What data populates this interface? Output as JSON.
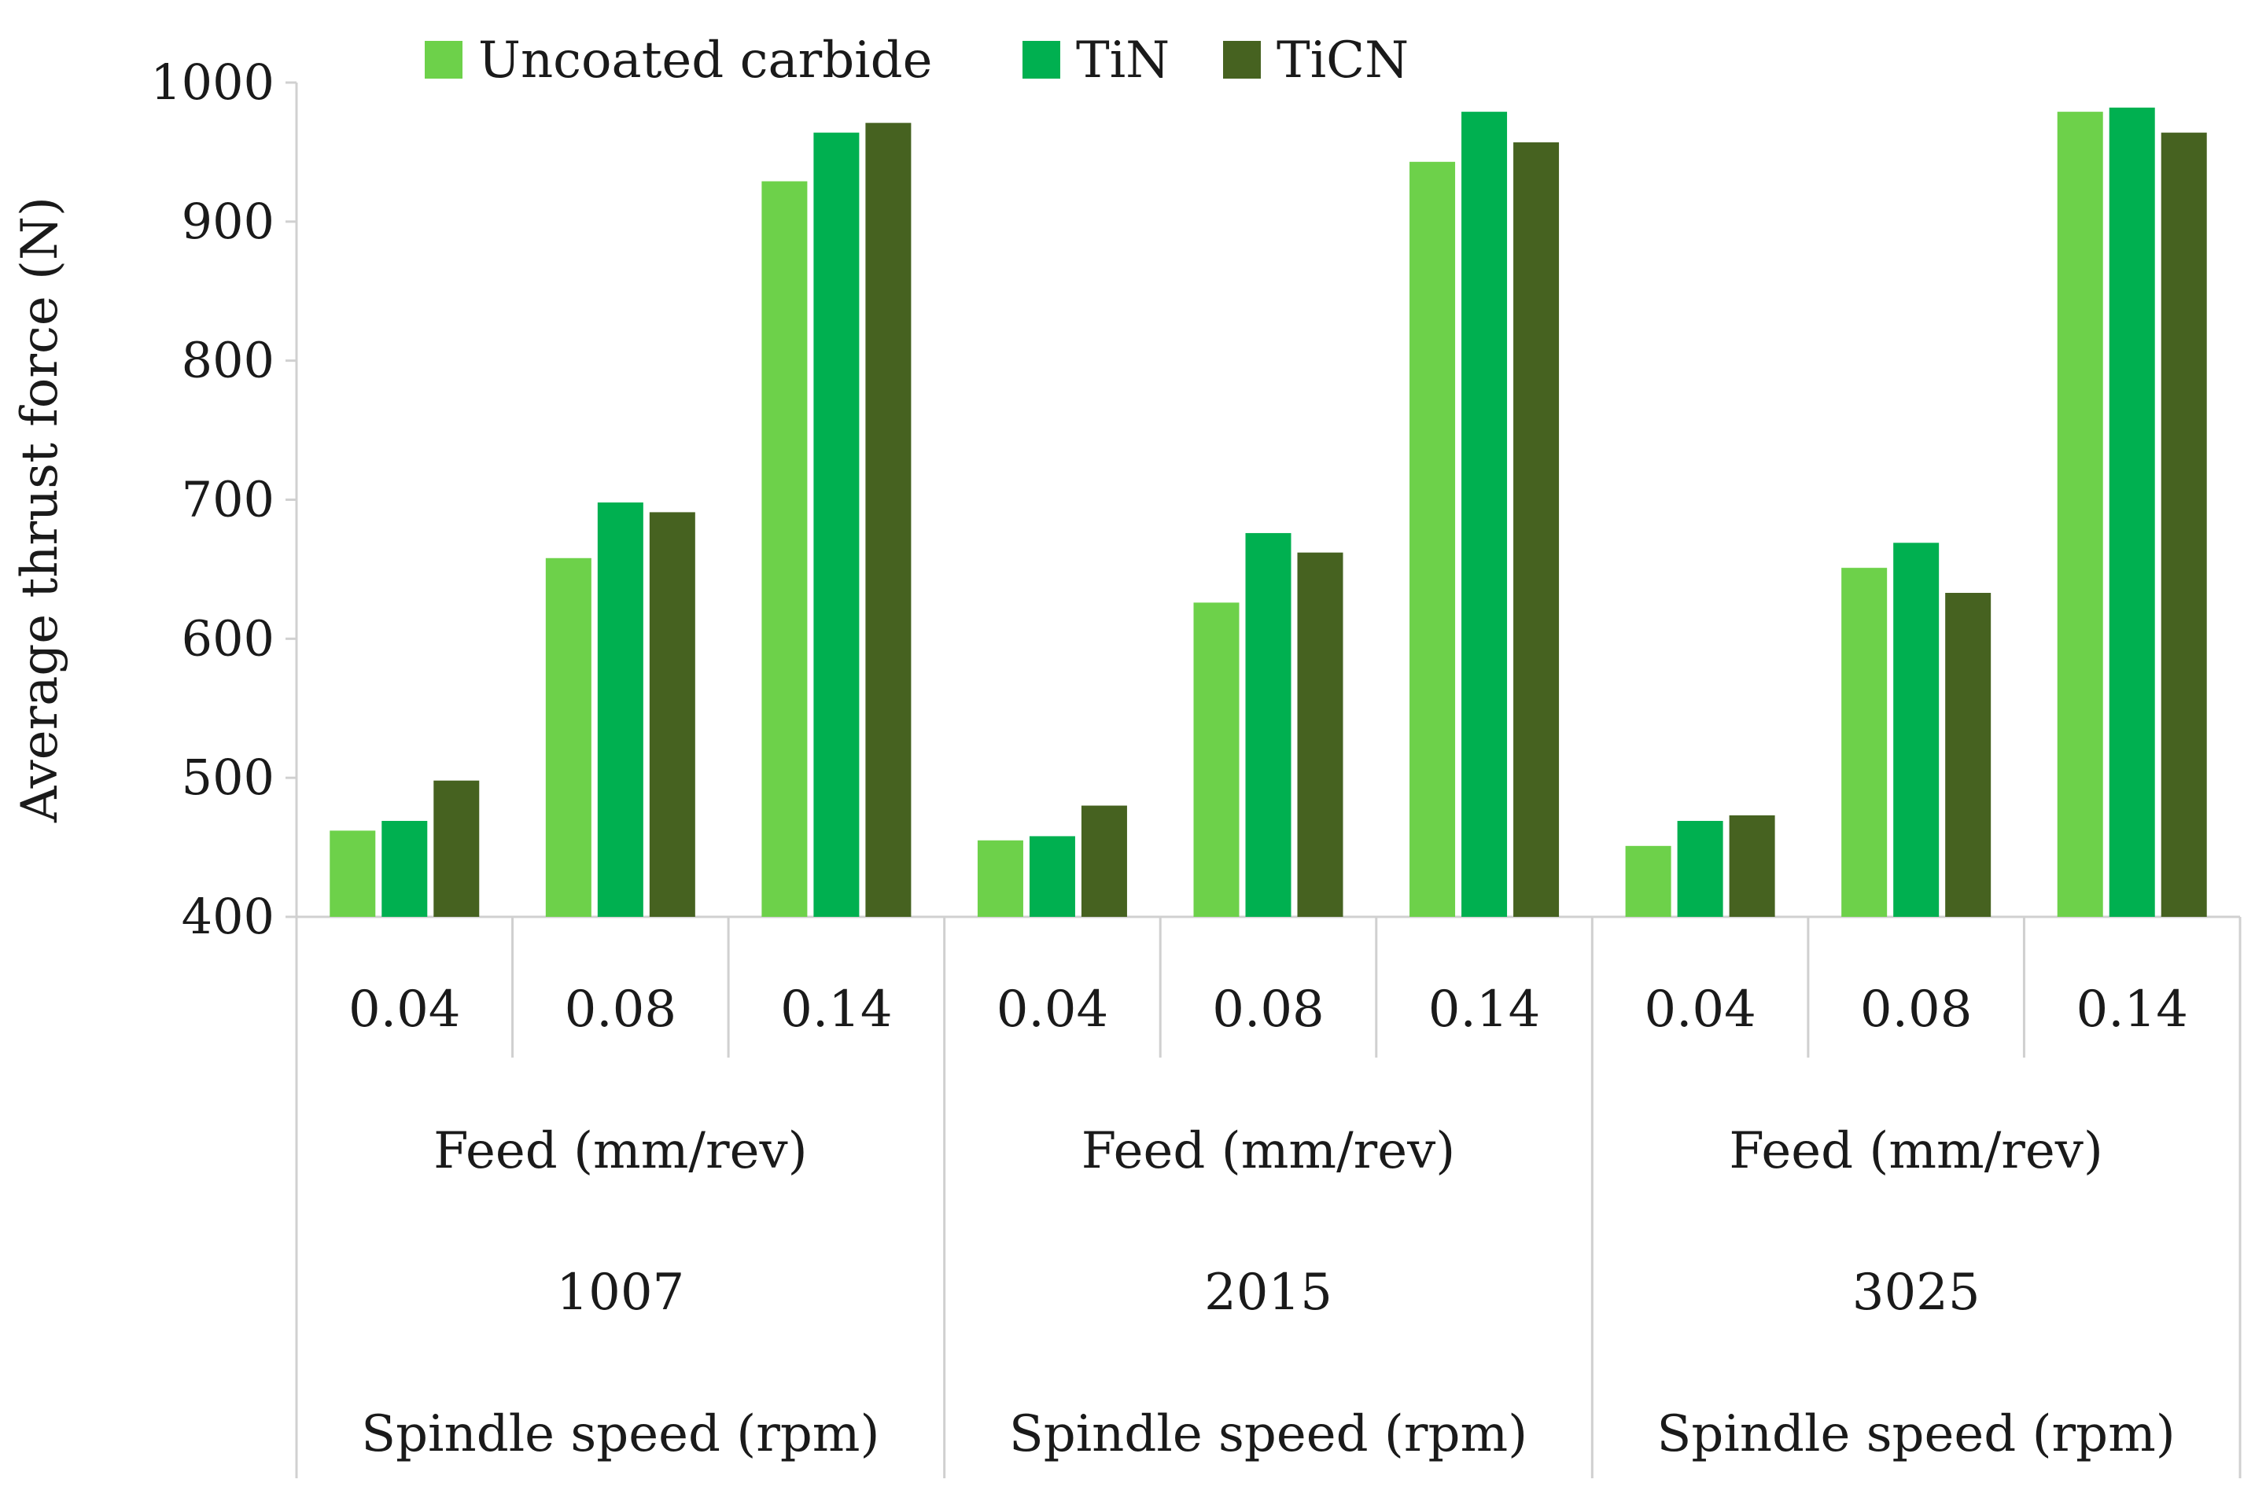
{
  "chart_data": {
    "type": "bar",
    "title": "",
    "ylabel": "Average   thrust force (N)",
    "ylim": [
      400,
      1000
    ],
    "yticks": [
      400,
      500,
      600,
      700,
      800,
      900,
      1000
    ],
    "grid": false,
    "legend_position": "top",
    "groups": [
      {
        "speed": "1007",
        "speed_label": "Spindle speed (rpm)",
        "feed_label": "Feed (mm/rev)",
        "feeds": [
          "0.04",
          "0.08",
          "0.14"
        ]
      },
      {
        "speed": "2015",
        "speed_label": "Spindle speed (rpm)",
        "feed_label": "Feed (mm/rev)",
        "feeds": [
          "0.04",
          "0.08",
          "0.14"
        ]
      },
      {
        "speed": "3025",
        "speed_label": "Spindle speed (rpm)",
        "feed_label": "Feed (mm/rev)",
        "feeds": [
          "0.04",
          "0.08",
          "0.14"
        ]
      }
    ],
    "series": [
      {
        "name": "Uncoated carbide",
        "color": "#6dd14a",
        "values": [
          462,
          658,
          929,
          455,
          626,
          943,
          451,
          651,
          979
        ]
      },
      {
        "name": "TiN",
        "color": "#00b050",
        "values": [
          469,
          698,
          964,
          458,
          676,
          979,
          469,
          669,
          982
        ]
      },
      {
        "name": "TiCN",
        "color": "#466220",
        "values": [
          498,
          691,
          971,
          480,
          662,
          957,
          473,
          633,
          964
        ]
      }
    ]
  }
}
